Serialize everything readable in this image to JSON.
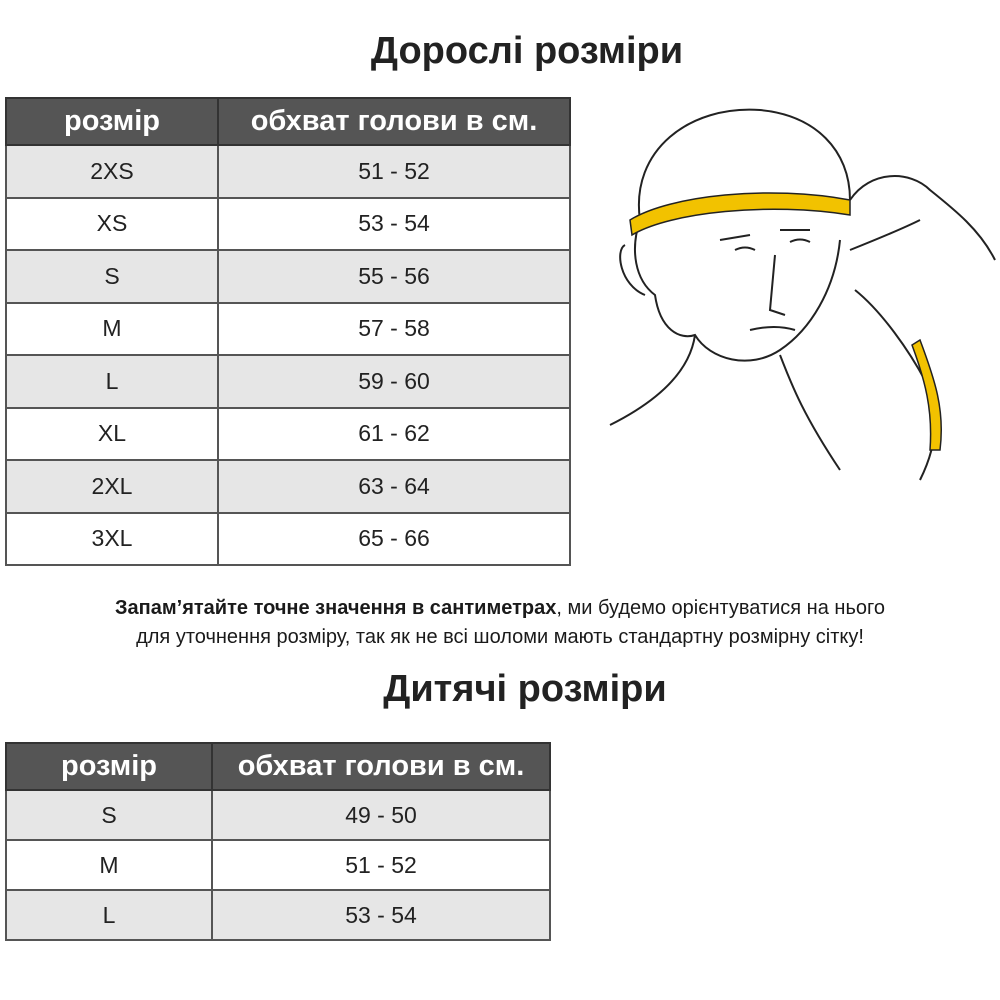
{
  "adult": {
    "title": "Дорослі розміри",
    "headers": [
      "розмір",
      "обхват голови в см."
    ],
    "rows": [
      [
        "2XS",
        "51 - 52"
      ],
      [
        "XS",
        "53 - 54"
      ],
      [
        "S",
        "55 - 56"
      ],
      [
        "M",
        "57 - 58"
      ],
      [
        "L",
        "59 - 60"
      ],
      [
        "XL",
        "61 - 62"
      ],
      [
        "2XL",
        "63 - 64"
      ],
      [
        "3XL",
        "65 - 66"
      ]
    ]
  },
  "note": {
    "bold": "Запам’ятайте точне значення в сантиметрах",
    "rest1": ", ми будемо орієнтуватися на нього",
    "rest2": "для уточнення розміру, так як не всі шоломи мають стандартну розмірну сітку!"
  },
  "kids": {
    "title": "Дитячі розміри",
    "headers": [
      "розмір",
      "обхват голови в см."
    ],
    "rows": [
      [
        "S",
        "49 - 50"
      ],
      [
        "M",
        "51 - 52"
      ],
      [
        "L",
        "53 - 54"
      ]
    ]
  },
  "colors": {
    "header_bg": "#555555",
    "stripe": "#e6e6e6",
    "tape": "#f2c200"
  }
}
